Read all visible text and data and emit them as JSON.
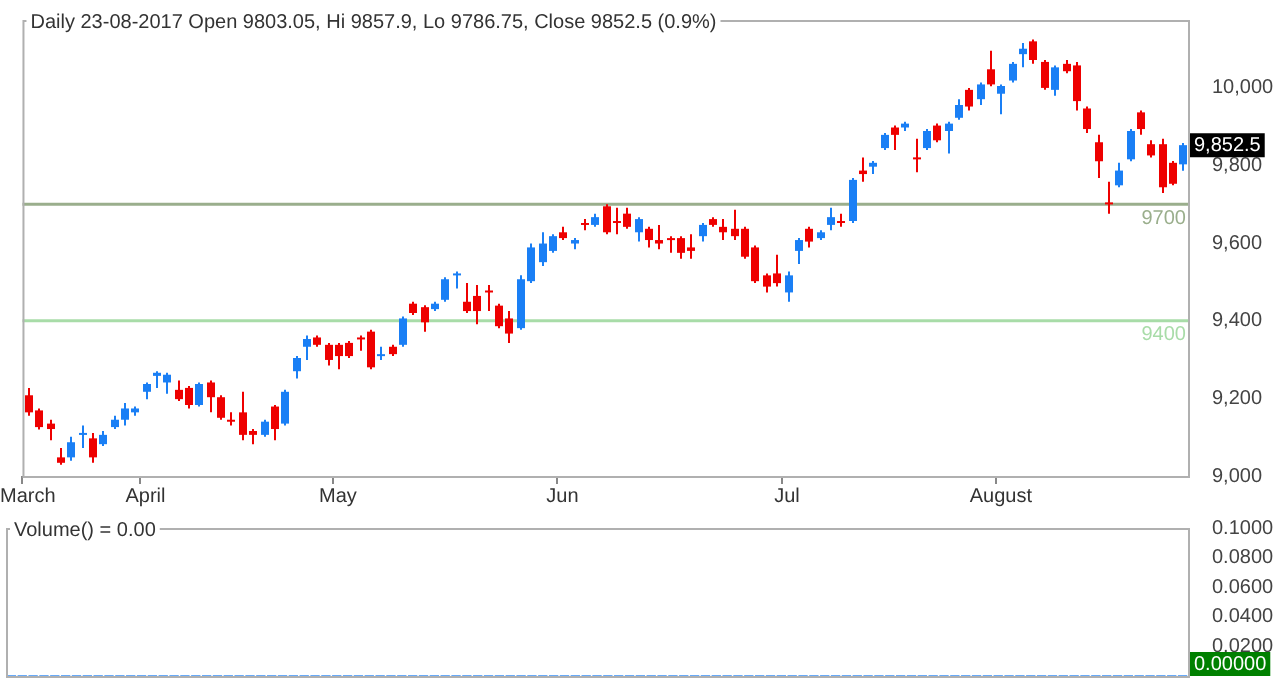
{
  "chart_data": [
    {
      "type": "candlestick",
      "title": "Daily 23-08-2017 Open 9803.05, Hi 9857.9, Lo 9786.75, Close 9852.5 (0.9%)",
      "categories": [
        "March",
        null,
        null,
        null,
        null,
        null,
        null,
        null,
        null,
        null,
        null,
        "April",
        null,
        null,
        null,
        null,
        null,
        null,
        null,
        null,
        null,
        null,
        null,
        null,
        null,
        null,
        null,
        null,
        null,
        "May",
        null,
        null,
        null,
        null,
        null,
        null,
        null,
        null,
        null,
        null,
        null,
        null,
        null,
        null,
        null,
        null,
        null,
        null,
        null,
        null,
        "Jun",
        null,
        null,
        null,
        null,
        null,
        null,
        null,
        null,
        null,
        null,
        null,
        null,
        null,
        null,
        null,
        null,
        null,
        null,
        null,
        null,
        "Jul",
        null,
        null,
        null,
        null,
        null,
        null,
        null,
        null,
        null,
        null,
        null,
        null,
        null,
        null,
        null,
        null,
        null,
        null,
        null,
        "August",
        null,
        null,
        null,
        null,
        null,
        null,
        null,
        null,
        null,
        null,
        null,
        null,
        null,
        null,
        null,
        null,
        null
      ],
      "ohlc": [
        [
          9208,
          9227,
          9155,
          9164
        ],
        [
          9169,
          9174,
          9120,
          9126
        ],
        [
          9135,
          9145,
          9092,
          9121
        ],
        [
          9048,
          9072,
          9029,
          9034
        ],
        [
          9048,
          9101,
          9039,
          9087
        ],
        [
          9106,
          9130,
          9072,
          9111
        ],
        [
          9097,
          9111,
          9034,
          9048
        ],
        [
          9082,
          9116,
          9077,
          9106
        ],
        [
          9126,
          9155,
          9121,
          9145
        ],
        [
          9145,
          9188,
          9130,
          9174
        ],
        [
          9164,
          9179,
          9155,
          9174
        ],
        [
          9217,
          9241,
          9198,
          9237
        ],
        [
          9258,
          9270,
          9227,
          9266
        ],
        [
          9241,
          9266,
          9212,
          9261
        ],
        [
          9222,
          9246,
          9193,
          9198
        ],
        [
          9227,
          9232,
          9174,
          9183
        ],
        [
          9183,
          9241,
          9179,
          9237
        ],
        [
          9241,
          9246,
          9164,
          9203
        ],
        [
          9203,
          9208,
          9145,
          9150
        ],
        [
          9145,
          9164,
          9130,
          9140
        ],
        [
          9164,
          9217,
          9092,
          9106
        ],
        [
          9116,
          9121,
          9082,
          9106
        ],
        [
          9106,
          9145,
          9101,
          9140
        ],
        [
          9179,
          9183,
          9092,
          9121
        ],
        [
          9135,
          9222,
          9130,
          9217
        ],
        [
          9270,
          9309,
          9251,
          9304
        ],
        [
          9333,
          9362,
          9299,
          9353
        ],
        [
          9357,
          9362,
          9333,
          9338
        ],
        [
          9338,
          9343,
          9285,
          9299
        ],
        [
          9338,
          9343,
          9275,
          9309
        ],
        [
          9343,
          9348,
          9304,
          9309
        ],
        [
          9357,
          9362,
          9323,
          9353
        ],
        [
          9372,
          9377,
          9275,
          9280
        ],
        [
          9309,
          9333,
          9299,
          9314
        ],
        [
          9333,
          9338,
          9309,
          9314
        ],
        [
          9338,
          9411,
          9333,
          9406
        ],
        [
          9444,
          9449,
          9415,
          9420
        ],
        [
          9435,
          9440,
          9372,
          9396
        ],
        [
          9430,
          9449,
          9425,
          9444
        ],
        [
          9454,
          9512,
          9449,
          9507
        ],
        [
          9517,
          9527,
          9483,
          9522
        ],
        [
          9449,
          9497,
          9420,
          9425
        ],
        [
          9464,
          9492,
          9391,
          9425
        ],
        [
          9478,
          9492,
          9425,
          9473
        ],
        [
          9439,
          9444,
          9381,
          9386
        ],
        [
          9406,
          9425,
          9343,
          9367
        ],
        [
          9381,
          9517,
          9377,
          9507
        ],
        [
          9502,
          9599,
          9497,
          9589
        ],
        [
          9551,
          9628,
          9541,
          9599
        ],
        [
          9580,
          9623,
          9575,
          9618
        ],
        [
          9628,
          9642,
          9608,
          9613
        ],
        [
          9599,
          9613,
          9584,
          9608
        ],
        [
          9652,
          9662,
          9633,
          9647
        ],
        [
          9647,
          9676,
          9642,
          9667
        ],
        [
          9695,
          9700,
          9623,
          9628
        ],
        [
          9657,
          9691,
          9623,
          9652
        ],
        [
          9676,
          9691,
          9637,
          9642
        ],
        [
          9628,
          9667,
          9604,
          9662
        ],
        [
          9637,
          9642,
          9589,
          9608
        ],
        [
          9608,
          9647,
          9584,
          9599
        ],
        [
          9613,
          9618,
          9575,
          9608
        ],
        [
          9613,
          9618,
          9560,
          9575
        ],
        [
          9589,
          9623,
          9560,
          9580
        ],
        [
          9618,
          9652,
          9604,
          9647
        ],
        [
          9662,
          9667,
          9642,
          9647
        ],
        [
          9642,
          9662,
          9608,
          9628
        ],
        [
          9637,
          9686,
          9608,
          9618
        ],
        [
          9637,
          9642,
          9560,
          9565
        ],
        [
          9589,
          9594,
          9497,
          9502
        ],
        [
          9517,
          9522,
          9473,
          9488
        ],
        [
          9522,
          9570,
          9488,
          9497
        ],
        [
          9473,
          9527,
          9449,
          9517
        ],
        [
          9580,
          9613,
          9546,
          9608
        ],
        [
          9637,
          9642,
          9589,
          9604
        ],
        [
          9613,
          9633,
          9608,
          9628
        ],
        [
          9647,
          9691,
          9633,
          9667
        ],
        [
          9657,
          9676,
          9642,
          9652
        ],
        [
          9657,
          9768,
          9652,
          9763
        ],
        [
          9787,
          9821,
          9758,
          9778
        ],
        [
          9797,
          9812,
          9778,
          9807
        ],
        [
          9845,
          9884,
          9840,
          9879
        ],
        [
          9898,
          9903,
          9840,
          9879
        ],
        [
          9898,
          9913,
          9889,
          9908
        ],
        [
          9821,
          9869,
          9783,
          9816
        ],
        [
          9845,
          9894,
          9840,
          9889
        ],
        [
          9903,
          9908,
          9860,
          9865
        ],
        [
          9889,
          9913,
          9831,
          9908
        ],
        [
          9923,
          9971,
          9918,
          9956
        ],
        [
          9995,
          10000,
          9942,
          9952
        ],
        [
          9971,
          10014,
          9956,
          10009
        ],
        [
          10048,
          10096,
          10004,
          10009
        ],
        [
          9985,
          10009,
          9932,
          10005
        ],
        [
          10019,
          10067,
          10014,
          10062
        ],
        [
          10087,
          10116,
          10053,
          10101
        ],
        [
          10120,
          10125,
          10062,
          10072
        ],
        [
          10067,
          10072,
          9995,
          10000
        ],
        [
          9995,
          10058,
          9980,
          10053
        ],
        [
          10062,
          10072,
          10038,
          10043
        ],
        [
          10058,
          10067,
          9942,
          9966
        ],
        [
          9947,
          9952,
          9884,
          9894
        ],
        [
          9860,
          9879,
          9768,
          9811
        ],
        [
          9705,
          9758,
          9676,
          9700
        ],
        [
          9749,
          9807,
          9744,
          9787
        ],
        [
          9816,
          9894,
          9811,
          9889
        ],
        [
          9937,
          9942,
          9879,
          9894
        ],
        [
          9855,
          9865,
          9821,
          9826
        ],
        [
          9855,
          9869,
          9729,
          9744
        ],
        [
          9807,
          9812,
          9749,
          9753
        ],
        [
          9803.05,
          9857.9,
          9786.75,
          9852.5
        ]
      ],
      "colors": [
        "#ee0000",
        "#ee0000",
        "#ee0000",
        "#ee0000",
        "#1a7ff5",
        "#1a7ff5",
        "#ee0000",
        "#1a7ff5",
        "#1a7ff5",
        "#1a7ff5",
        "#1a7ff5",
        "#1a7ff5",
        "#1a7ff5",
        "#1a7ff5",
        "#ee0000",
        "#ee0000",
        "#1a7ff5",
        "#ee0000",
        "#ee0000",
        "#ee0000",
        "#ee0000",
        "#ee0000",
        "#1a7ff5",
        "#ee0000",
        "#1a7ff5",
        "#1a7ff5",
        "#1a7ff5",
        "#ee0000",
        "#ee0000",
        "#ee0000",
        "#ee0000",
        "#ee0000",
        "#ee0000",
        "#1a7ff5",
        "#ee0000",
        "#1a7ff5",
        "#ee0000",
        "#ee0000",
        "#1a7ff5",
        "#1a7ff5",
        "#1a7ff5",
        "#ee0000",
        "#ee0000",
        "#ee0000",
        "#ee0000",
        "#ee0000",
        "#1a7ff5",
        "#1a7ff5",
        "#1a7ff5",
        "#1a7ff5",
        "#ee0000",
        "#1a7ff5",
        "#ee0000",
        "#1a7ff5",
        "#ee0000",
        "#ee0000",
        "#ee0000",
        "#1a7ff5",
        "#ee0000",
        "#ee0000",
        "#ee0000",
        "#ee0000",
        "#ee0000",
        "#1a7ff5",
        "#ee0000",
        "#ee0000",
        "#ee0000",
        "#ee0000",
        "#ee0000",
        "#ee0000",
        "#ee0000",
        "#1a7ff5",
        "#1a7ff5",
        "#ee0000",
        "#1a7ff5",
        "#1a7ff5",
        "#ee0000",
        "#1a7ff5",
        "#ee0000",
        "#1a7ff5",
        "#1a7ff5",
        "#ee0000",
        "#1a7ff5",
        "#ee0000",
        "#1a7ff5",
        "#ee0000",
        "#1a7ff5",
        "#1a7ff5",
        "#ee0000",
        "#1a7ff5",
        "#ee0000",
        "#1a7ff5",
        "#1a7ff5",
        "#1a7ff5",
        "#ee0000",
        "#ee0000",
        "#1a7ff5",
        "#ee0000",
        "#ee0000",
        "#ee0000",
        "#ee0000",
        "#ee0000",
        "#1a7ff5",
        "#1a7ff5",
        "#ee0000",
        "#ee0000",
        "#ee0000",
        "#ee0000",
        "#1a7ff5"
      ],
      "ylim": [
        9000,
        10175
      ],
      "yticks": [
        {
          "value": 9000,
          "label": "9,000"
        },
        {
          "value": 9200,
          "label": "9,200"
        },
        {
          "value": 9400,
          "label": "9,400"
        },
        {
          "value": 9600,
          "label": "9,600"
        },
        {
          "value": 9800,
          "label": "9,800"
        },
        {
          "value": 10000,
          "label": "10,000"
        }
      ],
      "ref_lines": [
        {
          "axis": "y",
          "value": 9700,
          "label": "9700",
          "color": "#9aae8c"
        },
        {
          "axis": "y",
          "value": 9400,
          "label": "9400",
          "color": "#a8dca8"
        }
      ],
      "annotations": [
        {
          "text": "9,852.5",
          "y": 9852.5
        }
      ]
    },
    {
      "type": "bar",
      "title": "Volume() = 0.00",
      "categories": [
        null,
        null,
        null,
        null,
        null,
        null,
        null,
        null,
        null,
        null,
        null,
        null,
        null,
        null,
        null,
        null,
        null,
        null,
        null,
        null,
        null,
        null,
        null,
        null,
        null,
        null,
        null,
        null,
        null,
        null,
        null,
        null,
        null,
        null,
        null,
        null,
        null,
        null,
        null,
        null,
        null,
        null,
        null,
        null,
        null,
        null,
        null,
        null,
        null,
        null,
        null,
        null,
        null,
        null,
        null,
        null,
        null,
        null,
        null,
        null,
        null,
        null,
        null,
        null,
        null,
        null,
        null,
        null,
        null,
        null,
        null,
        null,
        null,
        null,
        null,
        null,
        null,
        null,
        null,
        null,
        null,
        null,
        null,
        null,
        null,
        null,
        null,
        null,
        null,
        null,
        null,
        null,
        null,
        null,
        null,
        null,
        null,
        null,
        null,
        null,
        null,
        null,
        null,
        null,
        null,
        null,
        null,
        null,
        null
      ],
      "values": [
        0,
        0,
        0,
        0,
        0,
        0,
        0,
        0,
        0,
        0,
        0,
        0,
        0,
        0,
        0,
        0,
        0,
        0,
        0,
        0,
        0,
        0,
        0,
        0,
        0,
        0,
        0,
        0,
        0,
        0,
        0,
        0,
        0,
        0,
        0,
        0,
        0,
        0,
        0,
        0,
        0,
        0,
        0,
        0,
        0,
        0,
        0,
        0,
        0,
        0,
        0,
        0,
        0,
        0,
        0,
        0,
        0,
        0,
        0,
        0,
        0,
        0,
        0,
        0,
        0,
        0,
        0,
        0,
        0,
        0,
        0,
        0,
        0,
        0,
        0,
        0,
        0,
        0,
        0,
        0,
        0,
        0,
        0,
        0,
        0,
        0,
        0,
        0,
        0,
        0,
        0,
        0,
        0,
        0,
        0,
        0,
        0,
        0,
        0,
        0,
        0,
        0,
        0,
        0,
        0,
        0,
        0,
        0,
        0
      ],
      "color": "#1a7ff5",
      "ylim": [
        0,
        0.1
      ],
      "yticks": [
        {
          "value": 0.02,
          "label": "0.0200"
        },
        {
          "value": 0.04,
          "label": "0.0400"
        },
        {
          "value": 0.06,
          "label": "0.0600"
        },
        {
          "value": 0.08,
          "label": "0.0800"
        },
        {
          "value": 0.1,
          "label": "0.1000"
        }
      ],
      "tick_labels": "y",
      "annotations": [
        "0.00000"
      ]
    }
  ]
}
